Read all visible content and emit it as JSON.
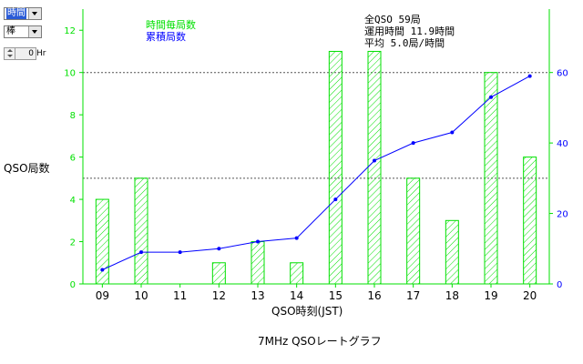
{
  "controls": {
    "combo1_value": "時間",
    "combo2_value": "棒",
    "spin_value": "0",
    "spin_unit": "Hr"
  },
  "stats": {
    "line1": "全QSO 59局",
    "line2": "運用時間 11.9時間",
    "line3": "平均 5.0局/時間"
  },
  "colors": {
    "hourly": "#00e000",
    "cumulative": "#0000ff",
    "grid": "#555555"
  },
  "chart_data": {
    "type": "bar",
    "categories": [
      "09",
      "10",
      "11",
      "12",
      "13",
      "14",
      "15",
      "16",
      "17",
      "18",
      "19",
      "20"
    ],
    "series": [
      {
        "name": "時間毎局数",
        "values": [
          4,
          5,
          0,
          1,
          2,
          1,
          11,
          11,
          5,
          3,
          10,
          6
        ]
      },
      {
        "name": "累積局数",
        "values": [
          4,
          9,
          9,
          10,
          12,
          13,
          24,
          35,
          40,
          43,
          53,
          59
        ]
      }
    ],
    "xlabel": "QSO時刻(JST)",
    "ylabel": "QSO局数",
    "ylim": [
      0,
      13
    ],
    "y2lim": [
      0,
      78
    ],
    "yticks": [
      0,
      2,
      4,
      6,
      8,
      10,
      12
    ],
    "y2ticks": [
      0,
      20,
      40,
      60
    ],
    "caption": "7MHz QSOレートグラフ"
  }
}
